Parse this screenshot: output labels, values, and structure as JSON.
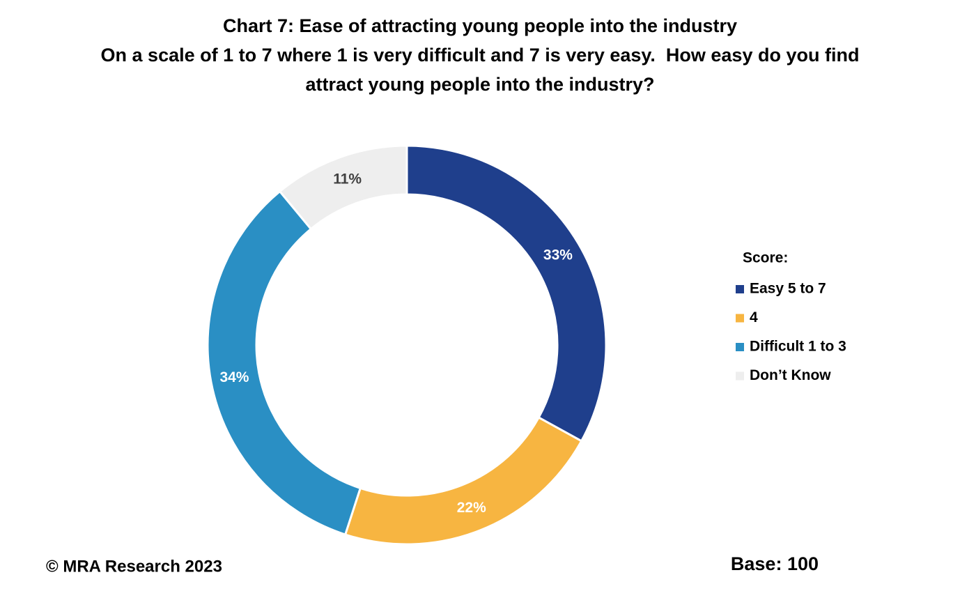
{
  "chart_data": {
    "type": "donut",
    "title": "Chart 7: Ease of attracting young people into the industry",
    "subtitle": "On a scale of 1 to 7 where 1 is very difficult and 7 is very easy.  How easy do you find attract young people into the industry?",
    "legend_title": "Score:",
    "categories": [
      "Easy 5 to 7",
      "4",
      "Difficult 1 to 3",
      "Don’t Know"
    ],
    "values": [
      33,
      22,
      34,
      11
    ],
    "value_labels": [
      "33%",
      "22%",
      "34%",
      "11%"
    ],
    "colors": [
      "#1f3f8c",
      "#f7b541",
      "#2a8fc4",
      "#eeeeee"
    ],
    "legend_position": "right",
    "footer_left": "© MRA Research 2023",
    "footer_right": "Base: 100"
  }
}
